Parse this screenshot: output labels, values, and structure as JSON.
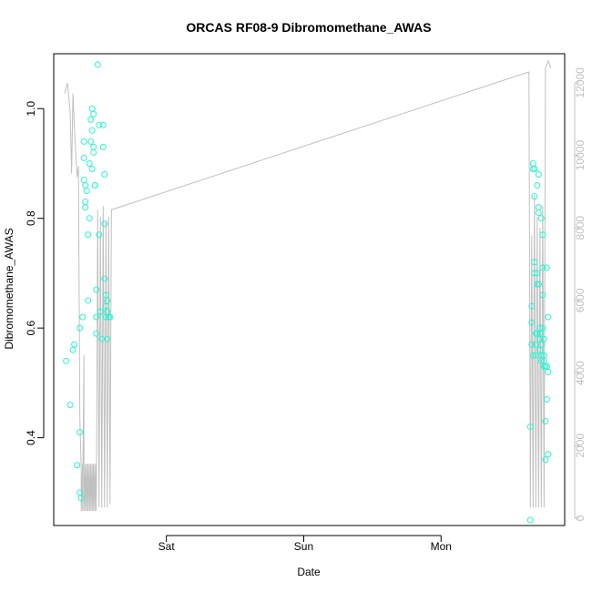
{
  "chart_data": {
    "type": "scatter",
    "title": "ORCAS RF08-9 Dibromomethane_AWAS",
    "xlabel": "Date",
    "ylabel": "Dibromomethane_AWAS",
    "xlim": [
      -0.82,
      2.9
    ],
    "ylim": [
      0.24,
      1.1
    ],
    "y2lim": [
      -200,
      12800
    ],
    "x_ticks": [
      {
        "value": 0,
        "label": "Sat"
      },
      {
        "value": 1,
        "label": "Sun"
      },
      {
        "value": 2,
        "label": "Mon"
      }
    ],
    "y_ticks": [
      {
        "value": 0.4,
        "label": "0.4"
      },
      {
        "value": 0.6,
        "label": "0.6"
      },
      {
        "value": 0.8,
        "label": "0.8"
      },
      {
        "value": 1.0,
        "label": "1.0"
      }
    ],
    "y2_ticks": [
      {
        "value": 0,
        "label": "0"
      },
      {
        "value": 2000,
        "label": "2000"
      },
      {
        "value": 4000,
        "label": "4000"
      },
      {
        "value": 6000,
        "label": "6000"
      },
      {
        "value": 8000,
        "label": "8000"
      },
      {
        "value": 10000,
        "label": "10000"
      },
      {
        "value": 12000,
        "label": "12000"
      }
    ],
    "grid": false,
    "colors": {
      "points": "#2af5d0",
      "line": "#c0c0c0",
      "axes": "#000000"
    },
    "series": [
      {
        "type": "points",
        "x": [
          -0.73,
          -0.7,
          -0.68,
          -0.67,
          -0.65,
          -0.63,
          -0.63,
          -0.62,
          -0.63,
          -0.61,
          -0.6,
          -0.6,
          -0.6,
          -0.59,
          -0.59,
          -0.59,
          -0.58,
          -0.57,
          -0.57,
          -0.56,
          -0.56,
          -0.55,
          -0.55,
          -0.54,
          -0.54,
          -0.54,
          -0.53,
          -0.53,
          -0.53,
          -0.52,
          -0.52,
          -0.51,
          -0.51,
          -0.51,
          -0.5,
          -0.49,
          -0.49,
          -0.48,
          -0.48,
          -0.47,
          -0.46,
          -0.46,
          -0.45,
          -0.45,
          -0.45,
          -0.44,
          -0.44,
          -0.44,
          -0.43,
          -0.43,
          -0.43,
          -0.42,
          -0.42,
          -0.41,
          2.65,
          2.65,
          2.66,
          2.66,
          2.66,
          2.67,
          2.67,
          2.67,
          2.68,
          2.68,
          2.68,
          2.68,
          2.69,
          2.69,
          2.69,
          2.7,
          2.7,
          2.7,
          2.7,
          2.71,
          2.71,
          2.71,
          2.71,
          2.72,
          2.72,
          2.72,
          2.72,
          2.73,
          2.73,
          2.73,
          2.73,
          2.74,
          2.74,
          2.74,
          2.74,
          2.75,
          2.75,
          2.75,
          2.75,
          2.76,
          2.76,
          2.76,
          2.77,
          2.77,
          2.77,
          2.78,
          2.78,
          2.78
        ],
        "y": [
          0.54,
          0.46,
          0.56,
          0.57,
          0.35,
          0.41,
          0.3,
          0.29,
          0.6,
          0.62,
          0.94,
          0.91,
          0.87,
          0.86,
          0.83,
          0.82,
          0.85,
          0.65,
          0.77,
          0.8,
          0.9,
          0.94,
          0.98,
          1.0,
          0.96,
          0.89,
          0.99,
          0.92,
          0.93,
          0.86,
          0.86,
          0.67,
          0.62,
          0.59,
          1.08,
          0.97,
          0.77,
          0.63,
          0.63,
          0.58,
          0.97,
          0.93,
          0.69,
          0.88,
          0.79,
          0.66,
          0.64,
          0.62,
          0.63,
          0.65,
          0.58,
          0.62,
          0.62,
          0.62,
          0.25,
          0.42,
          0.61,
          0.64,
          0.57,
          0.55,
          0.89,
          0.9,
          0.89,
          0.84,
          0.7,
          0.72,
          0.59,
          0.57,
          0.55,
          0.68,
          0.59,
          0.7,
          0.86,
          0.88,
          0.82,
          0.81,
          0.68,
          0.6,
          0.59,
          0.58,
          0.56,
          0.55,
          0.57,
          0.54,
          0.8,
          0.77,
          0.71,
          0.66,
          0.6,
          0.55,
          0.58,
          0.53,
          0.54,
          0.36,
          0.43,
          0.53,
          0.47,
          0.71,
          0.53,
          0.37,
          0.62,
          0.52
        ]
      },
      {
        "type": "line",
        "axis": "right",
        "x": [
          -0.74,
          -0.72,
          -0.7,
          -0.69,
          -0.68,
          -0.67,
          -0.66,
          -0.65,
          -0.64,
          -0.63,
          -0.62,
          -0.62,
          -0.61,
          -0.61,
          -0.6,
          -0.6,
          -0.59,
          -0.59,
          -0.58,
          -0.58,
          -0.57,
          -0.57,
          -0.56,
          -0.56,
          -0.55,
          -0.55,
          -0.54,
          -0.54,
          -0.53,
          -0.53,
          -0.52,
          -0.52,
          -0.51,
          -0.51,
          -0.5,
          -0.49,
          -0.48,
          -0.47,
          -0.46,
          -0.45,
          -0.44,
          -0.43,
          -0.42,
          -0.41,
          -0.4,
          2.64,
          2.65,
          2.66,
          2.67,
          2.68,
          2.69,
          2.7,
          2.71,
          2.72,
          2.73,
          2.74,
          2.75,
          2.76,
          2.77,
          2.78,
          2.79,
          2.8
        ],
        "y": [
          11700,
          12000,
          11200,
          9500,
          11700,
          10800,
          10100,
          9400,
          9700,
          2800,
          1400,
          200,
          1500,
          200,
          4500,
          200,
          1500,
          200,
          1500,
          200,
          1500,
          200,
          1500,
          200,
          1500,
          200,
          1500,
          200,
          1500,
          200,
          1500,
          200,
          1500,
          200,
          8500,
          300,
          8300,
          300,
          8600,
          300,
          8200,
          300,
          8300,
          400,
          8500,
          12300,
          300,
          7800,
          300,
          8900,
          300,
          8300,
          300,
          8000,
          300,
          8600,
          300,
          12400,
          12500,
          12600,
          12500,
          12400
        ]
      }
    ]
  }
}
